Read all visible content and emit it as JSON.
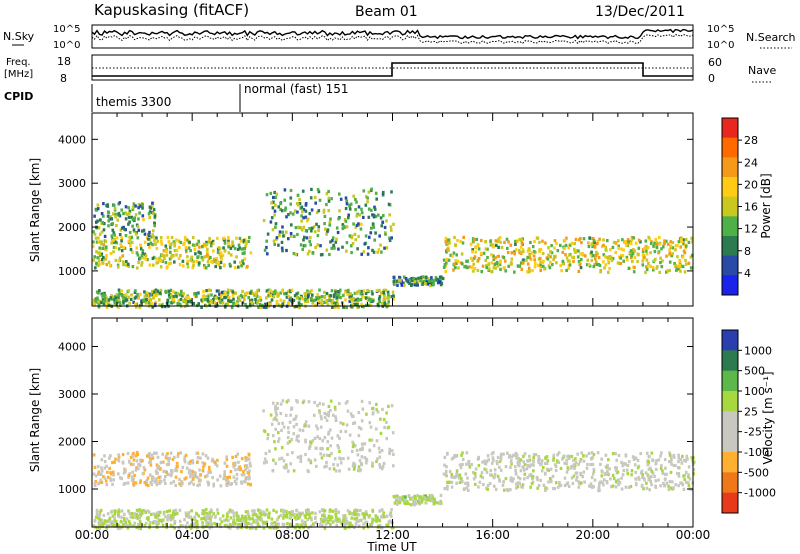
{
  "header": {
    "station": "Kapuskasing (fitACF)",
    "beam": "Beam 01",
    "date": "13/Dec/2011"
  },
  "noise_panel": {
    "left_label": "N.Sky",
    "right_label": "N.Search",
    "left_ticks": [
      "10^5",
      "10^0"
    ],
    "right_ticks": [
      "10^5",
      "10^0"
    ]
  },
  "freq_panel": {
    "left_label_1": "Freq.",
    "left_label_2": "[MHz]",
    "left_ticks": [
      "18",
      "8"
    ],
    "right_label": "Nave",
    "right_ticks": [
      "60",
      "0"
    ]
  },
  "cpid_panel": {
    "label": "CPID",
    "segments": [
      {
        "name": "themis 3300",
        "start_hour": 0.0
      },
      {
        "name": "normal (fast) 151",
        "start_hour": 6.0
      }
    ]
  },
  "power_colorbar": {
    "title": "Power [dB]",
    "ticks": [
      "28",
      "24",
      "20",
      "16",
      "12",
      "8",
      "4"
    ],
    "colors": [
      "#e8281e",
      "#ff6a00",
      "#f49a18",
      "#ffcb14",
      "#c8c81e",
      "#4fb047",
      "#2c7a4e",
      "#2a4aa8",
      "#1a24e8"
    ]
  },
  "velocity_colorbar": {
    "title": "Velocity [m s⁻¹]",
    "ticks": [
      "1000",
      "500",
      "100",
      "25",
      "-25",
      "-100",
      "-500",
      "-1000"
    ],
    "colors": [
      "#2a3eb0",
      "#2c7a4e",
      "#5cb84a",
      "#a8d840",
      "#c8c8c0",
      "#c8c8c0",
      "#ffb030",
      "#f07818",
      "#e83a1a"
    ]
  },
  "x_axis": {
    "label": "Time UT",
    "ticks": [
      "00:00",
      "04:00",
      "08:00",
      "12:00",
      "16:00",
      "20:00",
      "00:00"
    ]
  },
  "chart_data": [
    {
      "type": "heatmap",
      "title": "Power",
      "ylabel": "Slant Range [km]",
      "xlabel": "Time UT",
      "xlim": [
        0,
        24
      ],
      "ylim": [
        200,
        4600
      ],
      "yticks": [
        1000,
        2000,
        3000,
        4000
      ],
      "colorbar_label": "Power [dB]",
      "colorbar_range": [
        0,
        30
      ],
      "scatter_bands": [
        {
          "t_start": 0.0,
          "t_end": 6.3,
          "range_km": [
            1100,
            1800
          ],
          "power_db": 14
        },
        {
          "t_start": 0.0,
          "t_end": 2.5,
          "range_km": [
            1800,
            2600
          ],
          "power_db": 10
        },
        {
          "t_start": 6.8,
          "t_end": 12.0,
          "range_km": [
            1400,
            2900
          ],
          "power_db": 10
        },
        {
          "t_start": 12.0,
          "t_end": 14.0,
          "range_km": [
            700,
            900
          ],
          "power_db": 8
        },
        {
          "t_start": 14.0,
          "t_end": 24.0,
          "range_km": [
            1000,
            1800
          ],
          "power_db": 16
        },
        {
          "t_start": 0.0,
          "t_end": 12.0,
          "range_km": [
            200,
            600
          ],
          "power_db": 12
        }
      ]
    },
    {
      "type": "heatmap",
      "title": "Velocity",
      "ylabel": "Slant Range [km]",
      "xlabel": "Time UT",
      "xlim": [
        0,
        24
      ],
      "ylim": [
        200,
        4600
      ],
      "yticks": [
        1000,
        2000,
        3000,
        4000
      ],
      "colorbar_label": "Velocity [m s⁻¹]",
      "colorbar_range": [
        -1000,
        1000
      ],
      "scatter_bands": [
        {
          "t_start": 0.0,
          "t_end": 6.3,
          "range_km": [
            1100,
            1800
          ],
          "velocity_ms": -300
        },
        {
          "t_start": 6.8,
          "t_end": 12.0,
          "range_km": [
            1400,
            2900
          ],
          "velocity_ms": 0
        },
        {
          "t_start": 12.0,
          "t_end": 14.0,
          "range_km": [
            700,
            900
          ],
          "velocity_ms": 200
        },
        {
          "t_start": 14.0,
          "t_end": 24.0,
          "range_km": [
            1000,
            1800
          ],
          "velocity_ms": 0
        },
        {
          "t_start": 0.0,
          "t_end": 12.0,
          "range_km": [
            200,
            600
          ],
          "velocity_ms": 150
        }
      ]
    }
  ]
}
